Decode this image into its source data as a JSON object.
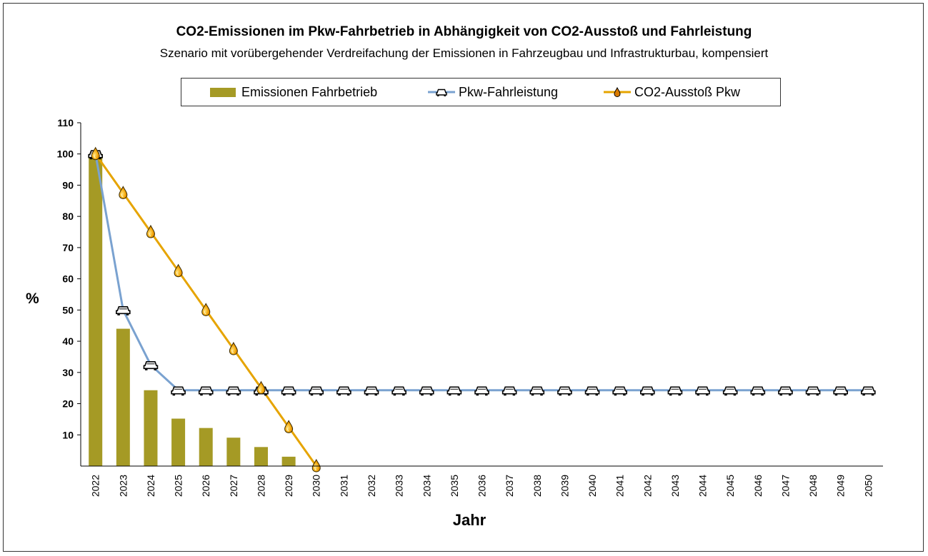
{
  "chart_data": {
    "type": "bar",
    "title": "CO2-Emissionen im Pkw-Fahrbetrieb in Abhängigkeit von CO2-Ausstoß und Fahrleistung",
    "subtitle": "Szenario mit vorübergehender Verdreifachung der Emissionen in Fahrzeugbau und Infrastrukturbau, kompensiert",
    "xlabel": "Jahr",
    "ylabel": "%",
    "ylim": [
      0,
      110
    ],
    "yticks": [
      10,
      20,
      30,
      40,
      50,
      60,
      70,
      80,
      90,
      100,
      110
    ],
    "grid": false,
    "legend_position": "top",
    "categories": [
      "2022",
      "2023",
      "2024",
      "2025",
      "2026",
      "2027",
      "2028",
      "2029",
      "2030",
      "2031",
      "2032",
      "2033",
      "2034",
      "2035",
      "2036",
      "2037",
      "2038",
      "2039",
      "2040",
      "2041",
      "2042",
      "2043",
      "2044",
      "2045",
      "2046",
      "2047",
      "2048",
      "2049",
      "2050"
    ],
    "series": [
      {
        "name": "Emissionen Fahrbetrieb",
        "type": "bar",
        "color": "#a59a25",
        "values": [
          100,
          44,
          24.3,
          15.2,
          12.2,
          9.1,
          6.1,
          3.0,
          0,
          null,
          null,
          null,
          null,
          null,
          null,
          null,
          null,
          null,
          null,
          null,
          null,
          null,
          null,
          null,
          null,
          null,
          null,
          null,
          null
        ]
      },
      {
        "name": "Pkw-Fahrleistung",
        "type": "line",
        "color": "#7aa2d0",
        "marker": "car-icon",
        "values": [
          100,
          50,
          32.4,
          24.3,
          24.3,
          24.3,
          24.3,
          24.3,
          24.3,
          24.3,
          24.3,
          24.3,
          24.3,
          24.3,
          24.3,
          24.3,
          24.3,
          24.3,
          24.3,
          24.3,
          24.3,
          24.3,
          24.3,
          24.3,
          24.3,
          24.3,
          24.3,
          24.3,
          24.3
        ]
      },
      {
        "name": "CO2-Ausstoß Pkw",
        "type": "line",
        "color": "#e6a400",
        "marker": "fuel-drop-icon",
        "values": [
          100,
          87.5,
          75,
          62.5,
          50,
          37.5,
          25,
          12.5,
          0,
          null,
          null,
          null,
          null,
          null,
          null,
          null,
          null,
          null,
          null,
          null,
          null,
          null,
          null,
          null,
          null,
          null,
          null,
          null,
          null
        ]
      }
    ]
  }
}
